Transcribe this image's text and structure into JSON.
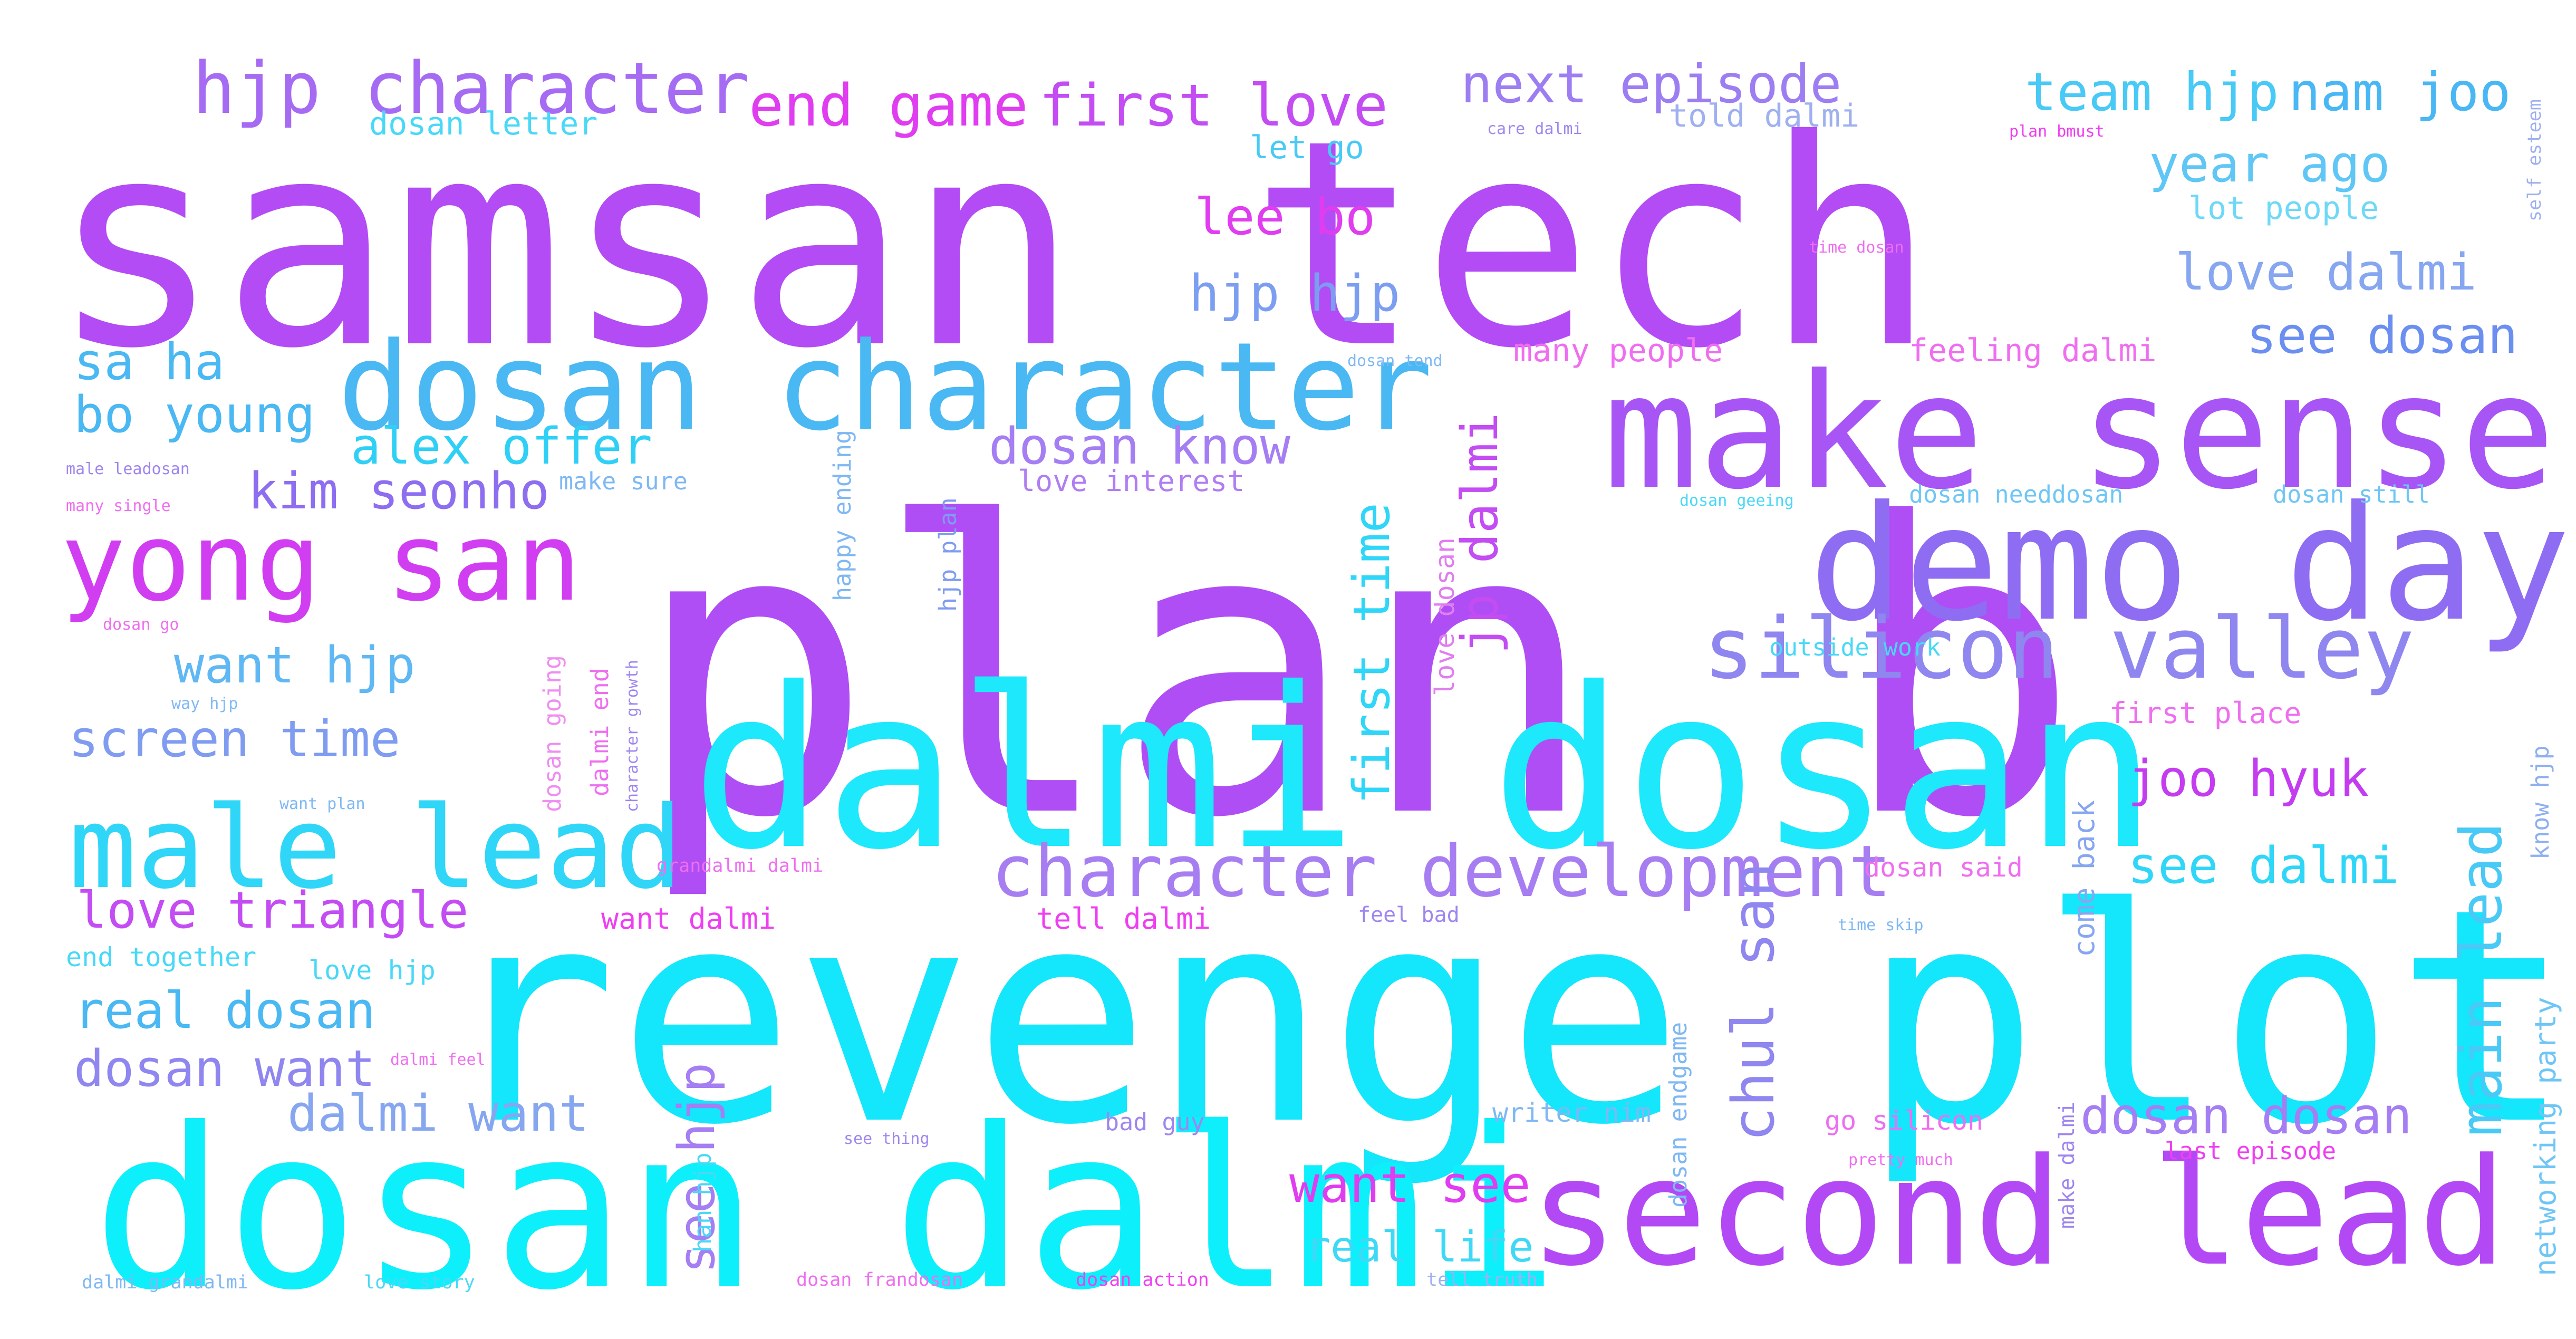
{
  "word_cloud": {
    "background": "#ffffff",
    "palette": {
      "violet": "#b34cf5",
      "purple": "#9b6cf2",
      "periwinkle": "#8f8cf0",
      "sky": "#49b8f3",
      "cyan": "#19e6fb",
      "magenta": "#e03cf0",
      "pink": "#ef3ef2",
      "lightblue": "#7fd0f5"
    },
    "words": [
      {
        "text": "samsan tech",
        "color": "#b34cf5"
      },
      {
        "text": "plan b",
        "color": "#b04ef5"
      },
      {
        "text": "revenge plot",
        "color": "#14e6fb"
      },
      {
        "text": "dalmi dosan",
        "color": "#1ee8fb"
      },
      {
        "text": "dosan dalmi",
        "color": "#0df0fb"
      },
      {
        "text": "make sense",
        "color": "#a855f5"
      },
      {
        "text": "demo day",
        "color": "#8f6df2"
      },
      {
        "text": "second lead",
        "color": "#b348f5"
      },
      {
        "text": "dosan character",
        "color": "#49b8f3"
      },
      {
        "text": "yong san",
        "color": "#d13ef2"
      },
      {
        "text": "male lead",
        "color": "#2fd6f7"
      },
      {
        "text": "silicon valley",
        "color": "#8f86ef"
      },
      {
        "text": "character development",
        "color": "#a77ef2"
      },
      {
        "text": "hjp character",
        "color": "#a66bf3"
      },
      {
        "text": "end game",
        "color": "#e03cf0"
      },
      {
        "text": "first love",
        "color": "#c34cf3"
      },
      {
        "text": "next episode",
        "color": "#9d7ef2"
      },
      {
        "text": "team hjp",
        "color": "#49c9f5"
      },
      {
        "text": "nam joo",
        "color": "#49b7f3"
      },
      {
        "text": "year ago",
        "color": "#5fc6f5"
      },
      {
        "text": "lee bo",
        "color": "#e03cf0"
      },
      {
        "text": "love dalmi",
        "color": "#86a6f0"
      },
      {
        "text": "hjp hjp",
        "color": "#7c9ef0"
      },
      {
        "text": "see dosan",
        "color": "#6b8ff0"
      },
      {
        "text": "sa ha",
        "color": "#49b8f3"
      },
      {
        "text": "bo young",
        "color": "#49b8f3"
      },
      {
        "text": "alex offer",
        "color": "#2fd0f5"
      },
      {
        "text": "dosan know",
        "color": "#a47ef2"
      },
      {
        "text": "kim seonho",
        "color": "#8d6ef0"
      },
      {
        "text": "first time",
        "color": "#2fd6f7"
      },
      {
        "text": "jp dalmi",
        "color": "#c34cf3"
      },
      {
        "text": "main lead",
        "color": "#49c9f5"
      },
      {
        "text": "want hjp",
        "color": "#5fb8f3"
      },
      {
        "text": "screen time",
        "color": "#7f9cf0"
      },
      {
        "text": "joo hyuk",
        "color": "#c33cf0"
      },
      {
        "text": "see dalmi",
        "color": "#2fd6f7"
      },
      {
        "text": "love triangle",
        "color": "#c34cf3"
      },
      {
        "text": "real dosan",
        "color": "#49b8f3"
      },
      {
        "text": "dosan want",
        "color": "#8f86ef"
      },
      {
        "text": "dalmi want",
        "color": "#86a6f0"
      },
      {
        "text": "chul san",
        "color": "#8f86ef"
      },
      {
        "text": "dosan dosan",
        "color": "#a47ef2"
      },
      {
        "text": "see hjp",
        "color": "#a47ef2"
      },
      {
        "text": "want see",
        "color": "#e03cf0"
      },
      {
        "text": "real life",
        "color": "#3fd8f7"
      },
      {
        "text": "dosan letter",
        "color": "#49d8f7"
      },
      {
        "text": "told dalmi",
        "color": "#9fb0f0"
      },
      {
        "text": "let go",
        "color": "#49c9f5"
      },
      {
        "text": "lot people",
        "color": "#6fd8f7"
      },
      {
        "text": "many people",
        "color": "#ef6ef0"
      },
      {
        "text": "feeling dalmi",
        "color": "#ef6ef0"
      },
      {
        "text": "love interest",
        "color": "#b07ef2"
      },
      {
        "text": "make sure",
        "color": "#7fb8f3"
      },
      {
        "text": "happy ending",
        "color": "#7fb8f3"
      },
      {
        "text": "hjp plan",
        "color": "#7f9cf0"
      },
      {
        "text": "love dosan",
        "color": "#e07ef0"
      },
      {
        "text": "dosan needdosan",
        "color": "#6fc6f5"
      },
      {
        "text": "dosan still",
        "color": "#6fc6f5"
      },
      {
        "text": "dosan going",
        "color": "#ef8ef0"
      },
      {
        "text": "dalmi end",
        "color": "#ef6ef0"
      },
      {
        "text": "outside work",
        "color": "#49d8f7"
      },
      {
        "text": "first place",
        "color": "#ef6ef0"
      },
      {
        "text": "dosan said",
        "color": "#ef6ef0"
      },
      {
        "text": "come back",
        "color": "#86a6f0"
      },
      {
        "text": "want dalmi",
        "color": "#ef3ef2"
      },
      {
        "text": "tell dalmi",
        "color": "#ef3ef2"
      },
      {
        "text": "feel bad",
        "color": "#9f86ef"
      },
      {
        "text": "end together",
        "color": "#49d8f7"
      },
      {
        "text": "love hjp",
        "color": "#49d8f7"
      },
      {
        "text": "dosan endgame",
        "color": "#7fb8f3"
      },
      {
        "text": "writer nim",
        "color": "#7fb8f3"
      },
      {
        "text": "go silicon",
        "color": "#ef6ef0"
      },
      {
        "text": "make dalmi",
        "color": "#9f86ef"
      },
      {
        "text": "bad guy",
        "color": "#9f86ef"
      },
      {
        "text": "last episode",
        "color": "#ef3ef2"
      },
      {
        "text": "networking party",
        "color": "#6fc6f5"
      },
      {
        "text": "know hjp",
        "color": "#8fb0f0"
      },
      {
        "text": "self esteem",
        "color": "#9fb0f0"
      },
      {
        "text": "han hjp",
        "color": "#49d8f7"
      },
      {
        "text": "dosan frandosan",
        "color": "#ef6ef0"
      },
      {
        "text": "dosan action",
        "color": "#ef3ef2"
      },
      {
        "text": "love story",
        "color": "#49d8f7"
      },
      {
        "text": "tell truth",
        "color": "#9fb0f0"
      },
      {
        "text": "dalmi grandalmi",
        "color": "#7fb8f3"
      },
      {
        "text": "grandalmi dalmi",
        "color": "#ef6ef0"
      },
      {
        "text": "care dalmi",
        "color": "#9f86ef"
      },
      {
        "text": "plan bmust",
        "color": "#ef3ef2"
      },
      {
        "text": "time dosan",
        "color": "#ef6ef0"
      },
      {
        "text": "dosan tend",
        "color": "#7fb8f3"
      },
      {
        "text": "male leadosan",
        "color": "#9f86ef"
      },
      {
        "text": "many single",
        "color": "#ef6ef0"
      },
      {
        "text": "dosan geeing",
        "color": "#49d8f7"
      },
      {
        "text": "dosan go",
        "color": "#ef6ef0"
      },
      {
        "text": "way hjp",
        "color": "#7fb8f3"
      },
      {
        "text": "want plan",
        "color": "#7fb8f3"
      },
      {
        "text": "dalmi feel",
        "color": "#ef6ef0"
      },
      {
        "text": "character growth",
        "color": "#9f86ef"
      },
      {
        "text": "time skip",
        "color": "#7fb8f3"
      },
      {
        "text": "see thing",
        "color": "#9f86ef"
      },
      {
        "text": "pretty much",
        "color": "#ef6ef0"
      }
    ]
  }
}
